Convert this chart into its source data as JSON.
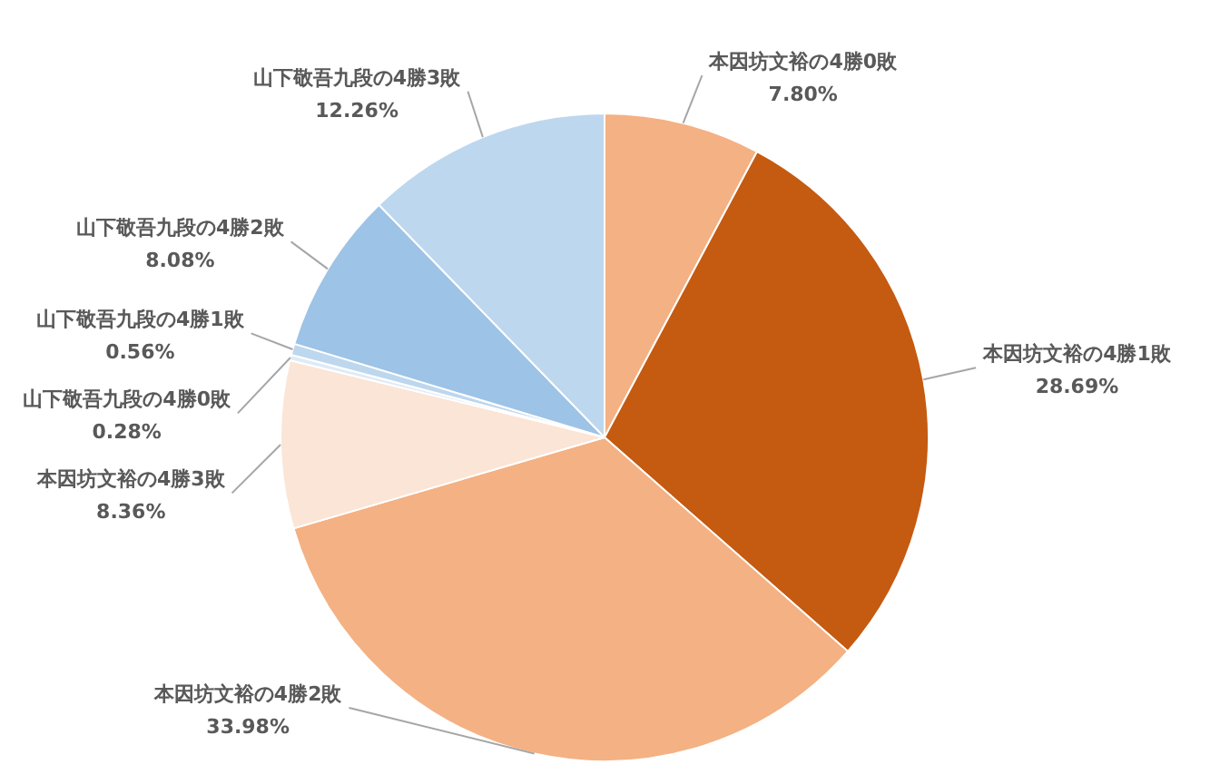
{
  "chart_data": {
    "type": "pie",
    "categories": [
      "本因坊文裕の4勝0敗",
      "本因坊文裕の4勝1敗",
      "本因坊文裕の4勝2敗",
      "本因坊文裕の4勝3敗",
      "山下敬吾九段の4勝0敗",
      "山下敬吾九段の4勝1敗",
      "山下敬吾九段の4勝2敗",
      "山下敬吾九段の4勝3敗"
    ],
    "values": [
      7.8,
      28.69,
      33.98,
      8.36,
      0.28,
      0.56,
      8.08,
      12.26
    ],
    "value_labels": [
      "7.80%",
      "28.69%",
      "33.98%",
      "8.36%",
      "0.28%",
      "0.56%",
      "8.08%",
      "12.26%"
    ],
    "colors": [
      "#f4b183",
      "#c55a11",
      "#f4b183",
      "#fbe5d6",
      "#deebf7",
      "#bdd7ee",
      "#9dc3e6",
      "#bdd7ee"
    ],
    "legend": false
  }
}
